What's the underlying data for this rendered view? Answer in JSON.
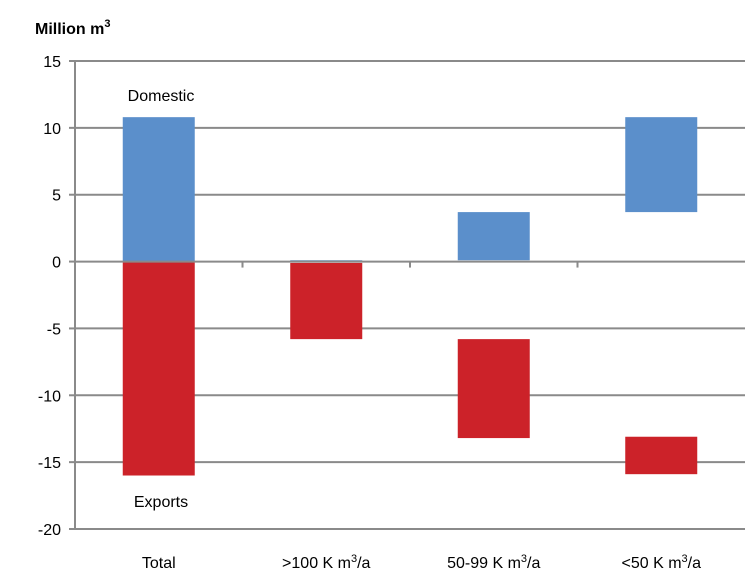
{
  "chart_data": {
    "type": "bar",
    "subtype": "floating-waterfall",
    "unit_label": "Million m",
    "unit_label_sup": "3",
    "categories": [
      {
        "text": "Total",
        "sup": "",
        "suffix": ""
      },
      {
        "text": ">100 K m",
        "sup": "3",
        "suffix": "/a"
      },
      {
        "text": "50-99 K m",
        "sup": "3",
        "suffix": "/a"
      },
      {
        "text": "<50 K m",
        "sup": "3",
        "suffix": "/a"
      }
    ],
    "series": [
      {
        "name": "Domestic",
        "color": "#5B8FCB",
        "bars": [
          {
            "category": "Total",
            "from": 0,
            "to": 10.8
          },
          {
            "category": ">100 K m3/a",
            "from": 0,
            "to": 0.1
          },
          {
            "category": "50-99 K m3/a",
            "from": 0.1,
            "to": 3.7
          },
          {
            "category": "<50 K m3/a",
            "from": 3.7,
            "to": 10.8
          }
        ]
      },
      {
        "name": "Exports",
        "color": "#CC2229",
        "bars": [
          {
            "category": "Total",
            "from": 0,
            "to": -16.0
          },
          {
            "category": ">100 K m3/a",
            "from": -0.1,
            "to": -5.8
          },
          {
            "category": "50-99 K m3/a",
            "from": -5.8,
            "to": -13.2
          },
          {
            "category": "<50 K m3/a",
            "from": -13.1,
            "to": -15.9
          }
        ]
      }
    ],
    "annotations": [
      "Domestic",
      "Exports"
    ],
    "ylim": [
      -20,
      15
    ],
    "yticks": [
      "15",
      "10",
      "5",
      "0",
      "-5",
      "-10",
      "-15",
      "-20"
    ],
    "ytick_values": [
      15,
      10,
      5,
      0,
      -5,
      -10,
      -15,
      -20
    ],
    "grid": true,
    "legend": "none"
  }
}
